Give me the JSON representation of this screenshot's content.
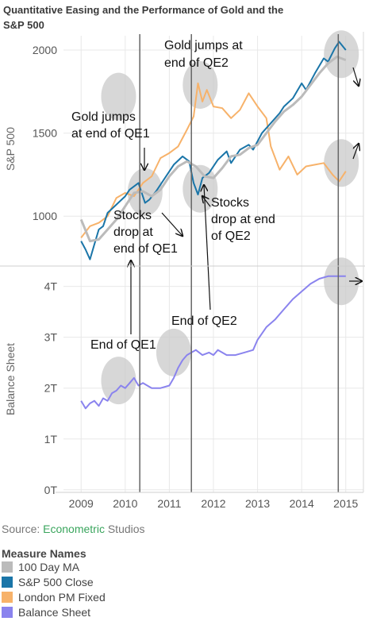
{
  "title_line1": "Quantitative Easing and the Performance of Gold and the",
  "title_line2": "S&P 500",
  "source_prefix": "Source: ",
  "source_link": "Econometric",
  "source_suffix": " Studios",
  "colors": {
    "ma": "#bbbbbb",
    "sp": "#1a75a8",
    "gold": "#f7b26a",
    "bs": "#8a83ee",
    "highlight": "#c9c9c9",
    "grid": "#e8e8e8",
    "vline": "#666666",
    "link": "#3aa55d"
  },
  "annotations": {
    "gold_qe2": [
      "Gold jumps at",
      "end of QE2"
    ],
    "gold_qe1": [
      "Gold jumps",
      "at end of QE1"
    ],
    "stocks_qe1": [
      "Stocks",
      "drop at",
      "end of QE1"
    ],
    "stocks_qe2": [
      "Stocks",
      "drop at end",
      "of QE2"
    ],
    "end_qe1": "End of QE1",
    "end_qe2": "End of QE2"
  },
  "chart_data": {
    "type": "line",
    "x_ticks": [
      "2009",
      "2010",
      "2011",
      "2012",
      "2013",
      "2014",
      "2015"
    ],
    "xlim": [
      2008.6,
      2015.4
    ],
    "vertical_lines_x": [
      2010.33,
      2011.5,
      2014.83
    ],
    "panels": [
      {
        "ylabel": "S&P 500",
        "ylim": [
          700,
          2110
        ],
        "y_ticks": [
          {
            "value": 1000,
            "label": "1000"
          },
          {
            "value": 1500,
            "label": "1500"
          },
          {
            "value": 2000,
            "label": "2000"
          }
        ],
        "series": [
          {
            "name": "London PM Fixed",
            "x": [
              2009.0,
              2009.2,
              2009.4,
              2009.6,
              2009.8,
              2010.0,
              2010.2,
              2010.4,
              2010.6,
              2010.8,
              2011.0,
              2011.2,
              2011.4,
              2011.55,
              2011.65,
              2011.75,
              2011.85,
              2012.0,
              2012.2,
              2012.4,
              2012.6,
              2012.8,
              2013.0,
              2013.2,
              2013.3,
              2013.5,
              2013.7,
              2013.9,
              2014.1,
              2014.3,
              2014.5,
              2014.7,
              2014.85,
              2015.0
            ],
            "values": [
              870,
              940,
              960,
              1000,
              1110,
              1140,
              1120,
              1200,
              1240,
              1350,
              1380,
              1420,
              1520,
              1600,
              1800,
              1690,
              1760,
              1660,
              1650,
              1590,
              1640,
              1740,
              1660,
              1590,
              1420,
              1280,
              1360,
              1250,
              1300,
              1310,
              1320,
              1250,
              1210,
              1270
            ]
          },
          {
            "name": "S&P 500 Close",
            "x": [
              2009.0,
              2009.1,
              2009.2,
              2009.3,
              2009.4,
              2009.5,
              2009.6,
              2009.8,
              2010.0,
              2010.1,
              2010.3,
              2010.45,
              2010.55,
              2010.7,
              2010.9,
              2011.1,
              2011.3,
              2011.45,
              2011.55,
              2011.65,
              2011.75,
              2011.9,
              2012.1,
              2012.3,
              2012.4,
              2012.6,
              2012.8,
              2012.9,
              2013.1,
              2013.3,
              2013.5,
              2013.6,
              2013.8,
              2014.0,
              2014.1,
              2014.3,
              2014.5,
              2014.6,
              2014.75,
              2014.85,
              2015.0
            ],
            "values": [
              850,
              800,
              740,
              830,
              920,
              940,
              1020,
              1070,
              1120,
              1160,
              1200,
              1080,
              1100,
              1150,
              1230,
              1310,
              1360,
              1330,
              1200,
              1130,
              1230,
              1260,
              1340,
              1390,
              1320,
              1400,
              1430,
              1400,
              1500,
              1560,
              1620,
              1660,
              1710,
              1800,
              1760,
              1860,
              1950,
              1930,
              2010,
              2050,
              2000
            ]
          },
          {
            "name": "100 Day MA",
            "x": [
              2009.0,
              2009.2,
              2009.4,
              2009.6,
              2009.8,
              2010.0,
              2010.2,
              2010.4,
              2010.6,
              2010.8,
              2011.0,
              2011.2,
              2011.4,
              2011.6,
              2011.8,
              2012.0,
              2012.2,
              2012.4,
              2012.6,
              2012.8,
              2013.0,
              2013.2,
              2013.4,
              2013.6,
              2013.8,
              2014.0,
              2014.2,
              2014.4,
              2014.6,
              2014.8,
              2015.0
            ],
            "values": [
              980,
              850,
              860,
              920,
              980,
              1060,
              1140,
              1150,
              1120,
              1160,
              1240,
              1300,
              1330,
              1300,
              1240,
              1230,
              1290,
              1360,
              1370,
              1410,
              1430,
              1500,
              1570,
              1630,
              1670,
              1720,
              1790,
              1860,
              1920,
              1960,
              1940
            ]
          }
        ],
        "highlights": [
          {
            "x": 2009.85,
            "y": 1720
          },
          {
            "x": 2010.45,
            "y": 1145
          },
          {
            "x": 2011.7,
            "y": 1165
          },
          {
            "x": 2011.7,
            "y": 1790
          },
          {
            "x": 2014.9,
            "y": 1975
          },
          {
            "x": 2014.9,
            "y": 1320
          }
        ]
      },
      {
        "ylabel": "Balance Sheet",
        "ylim": [
          -0.05,
          4.4
        ],
        "y_ticks": [
          {
            "value": 0,
            "label": "0T"
          },
          {
            "value": 1,
            "label": "1T"
          },
          {
            "value": 2,
            "label": "2T"
          },
          {
            "value": 3,
            "label": "3T"
          },
          {
            "value": 4,
            "label": "4T"
          }
        ],
        "series": [
          {
            "name": "Balance Sheet",
            "x": [
              2009.0,
              2009.1,
              2009.2,
              2009.3,
              2009.4,
              2009.5,
              2009.6,
              2009.7,
              2009.8,
              2009.9,
              2010.0,
              2010.1,
              2010.2,
              2010.3,
              2010.4,
              2010.5,
              2010.6,
              2010.8,
              2011.0,
              2011.1,
              2011.2,
              2011.3,
              2011.4,
              2011.5,
              2011.6,
              2011.75,
              2011.9,
              2012.0,
              2012.1,
              2012.2,
              2012.3,
              2012.5,
              2012.7,
              2012.9,
              2013.0,
              2013.2,
              2013.4,
              2013.6,
              2013.8,
              2014.0,
              2014.2,
              2014.4,
              2014.6,
              2014.8,
              2015.0
            ],
            "values": [
              1.75,
              1.6,
              1.7,
              1.75,
              1.65,
              1.8,
              1.75,
              1.9,
              1.95,
              2.05,
              2.0,
              2.1,
              2.2,
              2.05,
              2.1,
              2.05,
              2.0,
              2.0,
              2.05,
              2.2,
              2.4,
              2.55,
              2.65,
              2.7,
              2.75,
              2.65,
              2.7,
              2.65,
              2.75,
              2.7,
              2.65,
              2.65,
              2.7,
              2.75,
              2.95,
              3.2,
              3.35,
              3.55,
              3.75,
              3.9,
              4.05,
              4.15,
              4.2,
              4.2,
              4.2
            ]
          }
        ],
        "highlights": [
          {
            "x": 2009.85,
            "y": 2.15
          },
          {
            "x": 2011.1,
            "y": 2.7
          },
          {
            "x": 2014.9,
            "y": 4.1
          }
        ]
      }
    ],
    "legend": {
      "title": "Measure Names",
      "position": "bottom",
      "entries": [
        {
          "label": "100 Day MA",
          "color": "#bbbbbb"
        },
        {
          "label": "S&P 500 Close",
          "color": "#1a75a8"
        },
        {
          "label": "London PM Fixed",
          "color": "#f7b26a"
        },
        {
          "label": "Balance Sheet",
          "color": "#8a83ee"
        }
      ]
    }
  }
}
